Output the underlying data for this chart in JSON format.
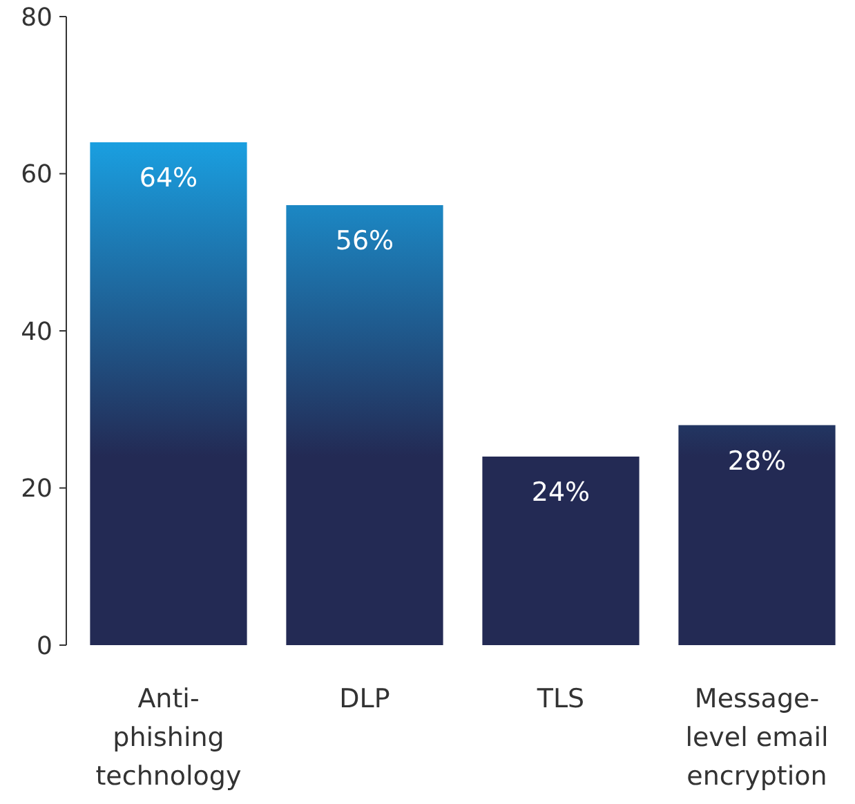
{
  "chart_data": {
    "type": "bar",
    "categories": [
      "Anti-phishing technology",
      "DLP",
      "TLS",
      "Message-level email encryption"
    ],
    "values": [
      64,
      56,
      24,
      28
    ],
    "color": "#232a54",
    "value_labels": [
      "64%",
      "56%",
      "24%",
      "28%"
    ],
    "ylim": [
      0,
      80
    ],
    "yticks": [
      0,
      20,
      40,
      60,
      80
    ],
    "grid": false
  }
}
